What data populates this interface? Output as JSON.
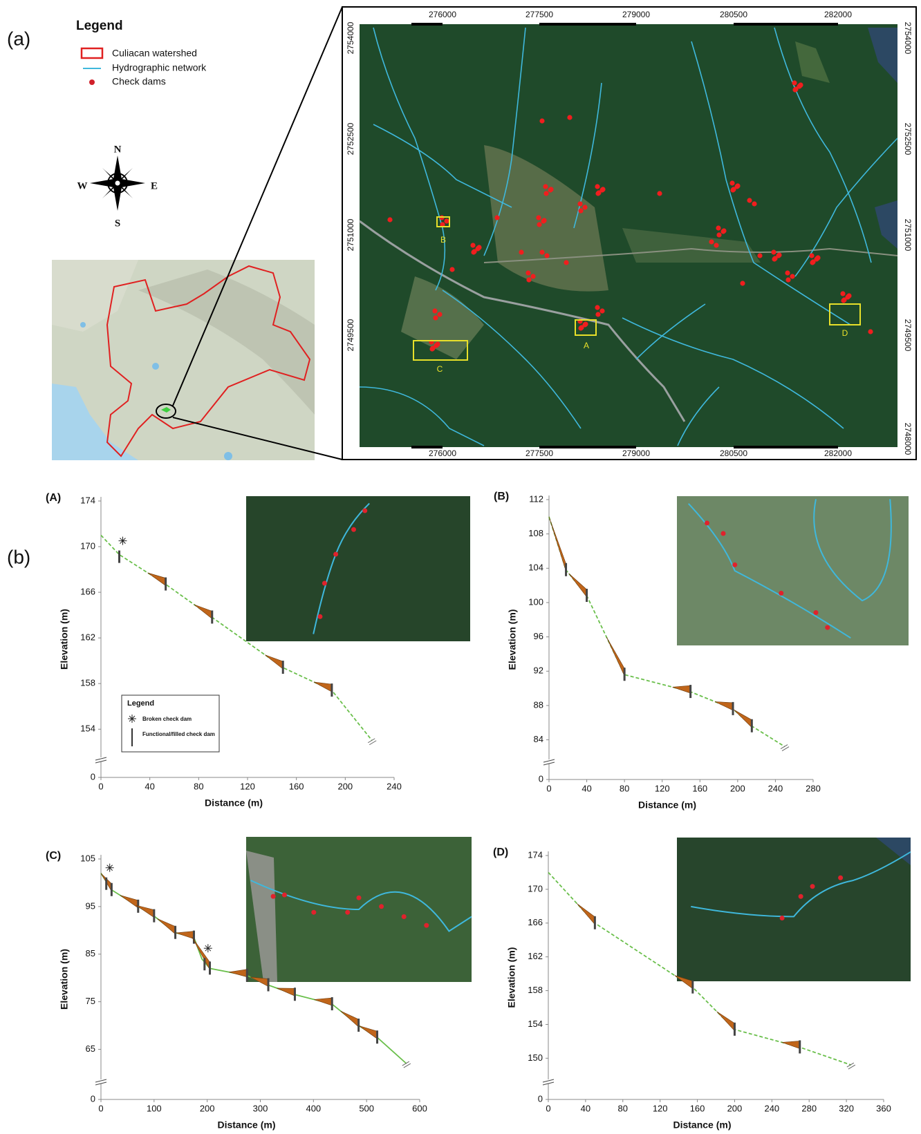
{
  "figure": {
    "panel_a": "(a)",
    "panel_b": "(b)",
    "legend_title": "Legend",
    "legend_items": [
      "Culiacan watershed",
      "Hydrographic network",
      "Check dams"
    ],
    "compass": {
      "n": "N",
      "s": "S",
      "w": "W",
      "e": "E"
    },
    "map_xticks": [
      "276000",
      "277500",
      "279000",
      "280500",
      "282000"
    ],
    "map_yticks_left": [
      "2754000",
      "2752500",
      "2751000",
      "2749500"
    ],
    "map_yticks_right": [
      "2754000",
      "2752500",
      "2751000",
      "2749500",
      "2748000"
    ],
    "boxes": [
      "A",
      "B",
      "C",
      "D"
    ]
  },
  "chart_data": [
    {
      "type": "line",
      "title": "(A)",
      "x_label": "Distance (m)",
      "y_label": "Elevation (m)",
      "xlim": [
        0,
        240
      ],
      "xticks": [
        0,
        40,
        80,
        120,
        160,
        200,
        240
      ],
      "ylim": [
        0,
        174
      ],
      "yticks": [
        0,
        154,
        158,
        162,
        166,
        170,
        174
      ],
      "ybreak": [
        0,
        152.5
      ],
      "color": "#6abf4b",
      "dashed": true,
      "x": [
        0,
        15,
        53,
        91,
        149,
        189,
        222
      ],
      "values": [
        171,
        169.3,
        166.7,
        163.8,
        159.4,
        157.4,
        153
      ],
      "check_dams": [
        53,
        91,
        149,
        189
      ],
      "broken_check_dams": [
        15
      ],
      "legend": {
        "title": "Legend",
        "items": [
          "Broken check dam",
          "Functional/filled check dam"
        ]
      }
    },
    {
      "type": "line",
      "title": "(B)",
      "x_label": "Distance (m)",
      "y_label": "Elevation (m)",
      "xlim": [
        0,
        280
      ],
      "xticks": [
        0,
        40,
        80,
        120,
        160,
        200,
        240,
        280
      ],
      "ylim": [
        0,
        112
      ],
      "yticks": [
        0,
        84,
        88,
        92,
        96,
        100,
        104,
        108,
        112
      ],
      "ybreak": [
        0,
        83
      ],
      "color": "#6abf4b",
      "dashed": true,
      "x": [
        0,
        18,
        40,
        80,
        150,
        195,
        215,
        250
      ],
      "values": [
        110,
        103.8,
        100.8,
        91.6,
        89.6,
        87.6,
        85.6,
        83.2
      ],
      "check_dams": [
        18,
        40,
        80,
        150,
        195,
        215
      ],
      "broken_check_dams": []
    },
    {
      "type": "line",
      "title": "(C)",
      "x_label": "Distance (m)",
      "y_label": "Elevation (m)",
      "xlim": [
        0,
        600
      ],
      "xticks": [
        0,
        100,
        200,
        300,
        400,
        500,
        600
      ],
      "ylim": [
        0,
        105
      ],
      "yticks": [
        0,
        65,
        75,
        85,
        95,
        105
      ],
      "ybreak": [
        0,
        61
      ],
      "color": "#6abf4b",
      "dashed": false,
      "x": [
        0,
        20,
        70,
        100,
        140,
        175,
        190,
        205,
        275,
        315,
        365,
        435,
        485,
        520,
        575
      ],
      "values": [
        102,
        98.5,
        95,
        93,
        89.5,
        88.5,
        84,
        82,
        80.5,
        78.5,
        76.5,
        74.5,
        70,
        67.5,
        62
      ],
      "check_dams": [
        20,
        70,
        100,
        140,
        175,
        205,
        275,
        315,
        365,
        435,
        485,
        520
      ],
      "broken_check_dams": [
        10,
        195
      ]
    },
    {
      "type": "line",
      "title": "(D)",
      "x_label": "Distance (m)",
      "y_label": "Elevation (m)",
      "xlim": [
        0,
        360
      ],
      "xticks": [
        0,
        40,
        80,
        120,
        160,
        200,
        240,
        280,
        320,
        360
      ],
      "ylim": [
        0,
        174
      ],
      "yticks": [
        0,
        150,
        154,
        158,
        162,
        166,
        170,
        174
      ],
      "ybreak": [
        0,
        148.8
      ],
      "color": "#6abf4b",
      "dashed": true,
      "x": [
        0,
        50,
        155,
        200,
        270,
        325
      ],
      "values": [
        172,
        166,
        158.4,
        153.4,
        151.3,
        149.2
      ],
      "check_dams": [
        50,
        155,
        200,
        270
      ],
      "broken_check_dams": []
    }
  ]
}
